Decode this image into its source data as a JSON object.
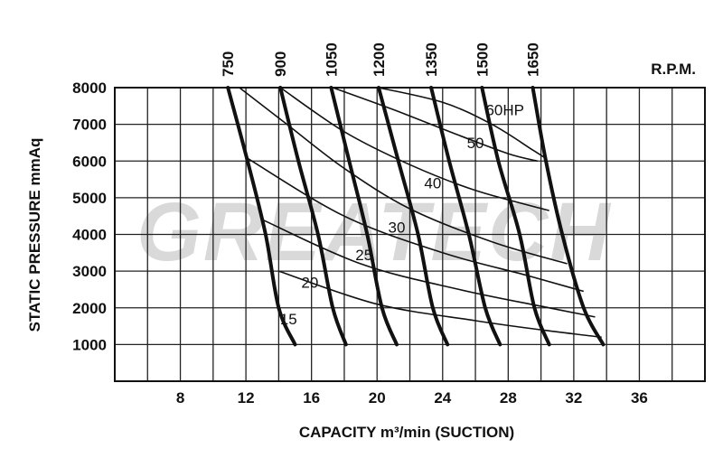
{
  "watermark": "GREATECH",
  "chart_data": {
    "type": "line",
    "xlabel": "CAPACITY  m³/min  (SUCTION)",
    "ylabel": "STATIC  PRESSURE  mmAq",
    "rpm_unit": "R.P.M.",
    "xlim": [
      4,
      40
    ],
    "ylim": [
      0,
      8000
    ],
    "x_ticks": [
      8,
      12,
      16,
      20,
      24,
      28,
      32,
      36
    ],
    "y_ticks": [
      1000,
      2000,
      3000,
      4000,
      5000,
      6000,
      7000,
      8000
    ],
    "grid": true,
    "rpm_curves": [
      {
        "name": "750",
        "points": [
          [
            10.9,
            8000
          ],
          [
            12.1,
            6000
          ],
          [
            13.2,
            4000
          ],
          [
            14.0,
            2000
          ],
          [
            15.0,
            1000
          ]
        ]
      },
      {
        "name": "900",
        "points": [
          [
            14.1,
            8000
          ],
          [
            15.2,
            6000
          ],
          [
            16.4,
            4000
          ],
          [
            17.3,
            2000
          ],
          [
            18.1,
            1000
          ]
        ]
      },
      {
        "name": "1050",
        "points": [
          [
            17.2,
            8000
          ],
          [
            18.3,
            6000
          ],
          [
            19.4,
            4000
          ],
          [
            20.3,
            2000
          ],
          [
            21.2,
            1000
          ]
        ]
      },
      {
        "name": "1200",
        "points": [
          [
            20.1,
            8000
          ],
          [
            21.3,
            6000
          ],
          [
            22.5,
            4000
          ],
          [
            23.4,
            2000
          ],
          [
            24.3,
            1000
          ]
        ]
      },
      {
        "name": "1350",
        "points": [
          [
            23.3,
            8000
          ],
          [
            24.4,
            6000
          ],
          [
            25.6,
            4000
          ],
          [
            26.6,
            2000
          ],
          [
            27.5,
            1000
          ]
        ]
      },
      {
        "name": "1500",
        "points": [
          [
            26.4,
            8000
          ],
          [
            27.4,
            6000
          ],
          [
            28.7,
            4000
          ],
          [
            29.6,
            2000
          ],
          [
            30.5,
            1000
          ]
        ]
      },
      {
        "name": "1650",
        "points": [
          [
            29.5,
            8000
          ],
          [
            30.3,
            6000
          ],
          [
            31.3,
            4000
          ],
          [
            32.6,
            2000
          ],
          [
            33.8,
            1000
          ]
        ]
      }
    ],
    "hp_curves": [
      {
        "name": "15",
        "points": [
          [
            14.0,
            3000
          ],
          [
            20.0,
            2100
          ],
          [
            26.0,
            1650
          ],
          [
            30.0,
            1400
          ],
          [
            33.7,
            1200
          ]
        ]
      },
      {
        "name": "20",
        "points": [
          [
            13.0,
            4400
          ],
          [
            19.0,
            3200
          ],
          [
            25.0,
            2500
          ],
          [
            30.5,
            2000
          ],
          [
            33.3,
            1750
          ]
        ]
      },
      {
        "name": "25",
        "points": [
          [
            12.0,
            6100
          ],
          [
            18.0,
            4500
          ],
          [
            24.0,
            3500
          ],
          [
            29.0,
            2900
          ],
          [
            32.6,
            2450
          ]
        ]
      },
      {
        "name": "30",
        "points": [
          [
            11.6,
            8000
          ],
          [
            14.5,
            7000
          ],
          [
            18.0,
            5800
          ],
          [
            22.0,
            4700
          ],
          [
            27.0,
            3800
          ],
          [
            31.6,
            3200
          ]
        ]
      },
      {
        "name": "40",
        "points": [
          [
            14.1,
            8000
          ],
          [
            18.0,
            6800
          ],
          [
            22.0,
            5900
          ],
          [
            26.0,
            5200
          ],
          [
            30.5,
            4650
          ]
        ]
      },
      {
        "name": "50",
        "points": [
          [
            17.3,
            8000
          ],
          [
            21.0,
            7400
          ],
          [
            25.0,
            6700
          ],
          [
            28.0,
            6200
          ],
          [
            29.8,
            6000
          ]
        ]
      },
      {
        "name": "60HP",
        "points": [
          [
            20.1,
            8000
          ],
          [
            24.0,
            7600
          ],
          [
            27.0,
            7000
          ],
          [
            29.5,
            6300
          ],
          [
            30.2,
            6100
          ]
        ]
      }
    ]
  }
}
